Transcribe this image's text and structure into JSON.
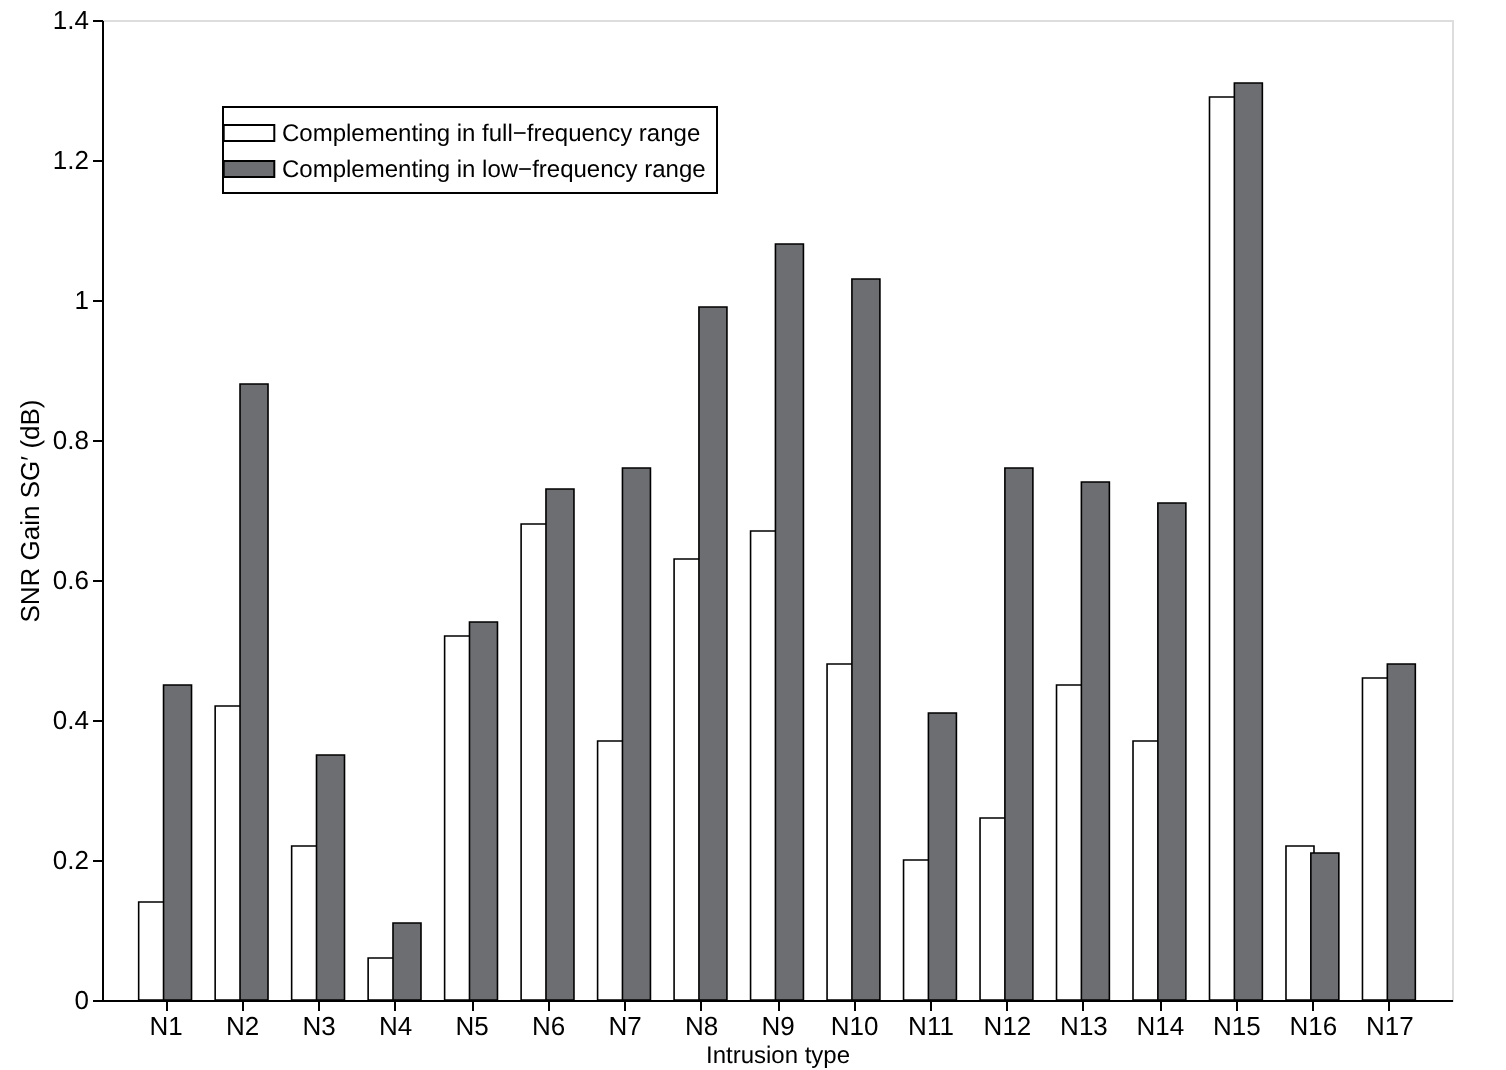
{
  "chart_data": {
    "type": "bar",
    "xlabel": "Intrusion type",
    "ylabel": "SNR Gain SG′ (dB)",
    "categories": [
      "N1",
      "N2",
      "N3",
      "N4",
      "N5",
      "N6",
      "N7",
      "N8",
      "N9",
      "N10",
      "N11",
      "N12",
      "N13",
      "N14",
      "N15",
      "N16",
      "N17"
    ],
    "series": [
      {
        "name": "Complementing in full−frequency range",
        "color": "#ffffff",
        "values": [
          0.14,
          0.42,
          0.22,
          0.06,
          0.52,
          0.68,
          0.37,
          0.63,
          0.67,
          0.48,
          0.2,
          0.26,
          0.45,
          0.37,
          1.29,
          0.22,
          0.46
        ]
      },
      {
        "name": "Complementing in low−frequency range",
        "color": "#6d6e71",
        "values": [
          0.45,
          0.88,
          0.35,
          0.11,
          0.54,
          0.73,
          0.76,
          0.99,
          1.08,
          1.03,
          0.41,
          0.76,
          0.74,
          0.71,
          1.31,
          0.21,
          0.48
        ]
      }
    ],
    "ylim": [
      0,
      1.4
    ],
    "yticks": [
      0,
      0.2,
      0.4,
      0.6,
      0.8,
      1,
      1.2,
      1.4
    ],
    "grid": false,
    "legend": "top left"
  }
}
